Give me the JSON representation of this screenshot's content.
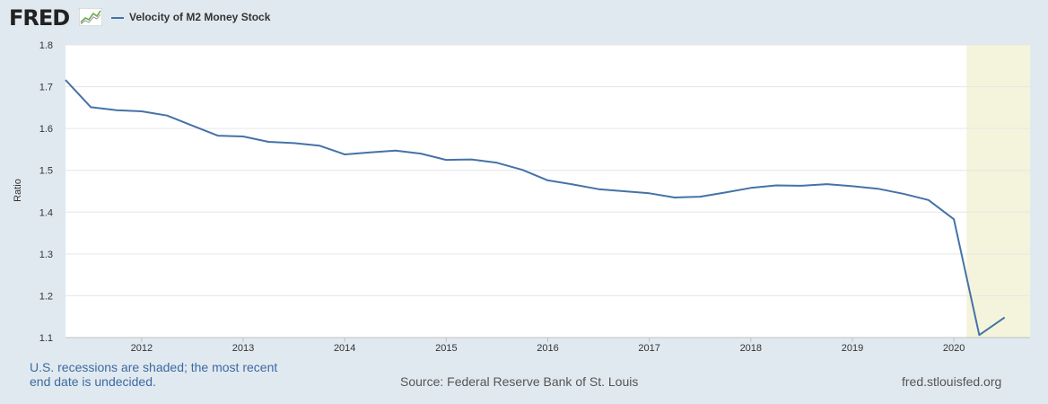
{
  "header": {
    "logo_text": "FRED",
    "logo_icon": "fred-chart-icon",
    "legend_label": "Velocity of M2 Money Stock",
    "legend_color": "#4572a7"
  },
  "footer": {
    "recession_note": "U.S. recessions are shaded; the most recent end date is undecided.",
    "source": "Source: Federal Reserve Bank of St. Louis",
    "website": "fred.stlouisfed.org"
  },
  "chart_data": {
    "type": "line",
    "title": "",
    "xlabel": "",
    "ylabel": "Ratio",
    "xlim": [
      2011.25,
      2020.75
    ],
    "ylim": [
      1.1,
      1.8
    ],
    "yticks": [
      "1.1",
      "1.2",
      "1.3",
      "1.4",
      "1.5",
      "1.6",
      "1.7",
      "1.8"
    ],
    "xticks": [
      "2012",
      "2013",
      "2014",
      "2015",
      "2016",
      "2017",
      "2018",
      "2019",
      "2020"
    ],
    "grid": true,
    "legend": "top-left",
    "recession": [
      2020.125,
      2020.75
    ],
    "recession_color": "#f4f4dc",
    "series": [
      {
        "name": "Velocity of M2 Money Stock",
        "color": "#4572a7",
        "x": [
          "2011-04-01",
          "2011-07-01",
          "2011-10-01",
          "2012-01-01",
          "2012-04-01",
          "2012-07-01",
          "2012-10-01",
          "2013-01-01",
          "2013-04-01",
          "2013-07-01",
          "2013-10-01",
          "2014-01-01",
          "2014-04-01",
          "2014-07-01",
          "2014-10-01",
          "2015-01-01",
          "2015-04-01",
          "2015-07-01",
          "2015-10-01",
          "2016-01-01",
          "2016-04-01",
          "2016-07-01",
          "2016-10-01",
          "2017-01-01",
          "2017-04-01",
          "2017-07-01",
          "2017-10-01",
          "2018-01-01",
          "2018-04-01",
          "2018-07-01",
          "2018-10-01",
          "2019-01-01",
          "2019-04-01",
          "2019-07-01",
          "2019-10-01",
          "2020-01-01",
          "2020-04-01",
          "2020-07-01"
        ],
        "values": [
          1.716,
          1.651,
          1.644,
          1.641,
          1.631,
          1.607,
          1.583,
          1.581,
          1.568,
          1.565,
          1.559,
          1.538,
          1.543,
          1.547,
          1.54,
          1.525,
          1.526,
          1.518,
          1.501,
          1.476,
          1.466,
          1.455,
          1.45,
          1.445,
          1.435,
          1.437,
          1.447,
          1.458,
          1.464,
          1.463,
          1.467,
          1.462,
          1.456,
          1.444,
          1.429,
          1.383,
          1.106,
          1.148
        ]
      }
    ]
  }
}
